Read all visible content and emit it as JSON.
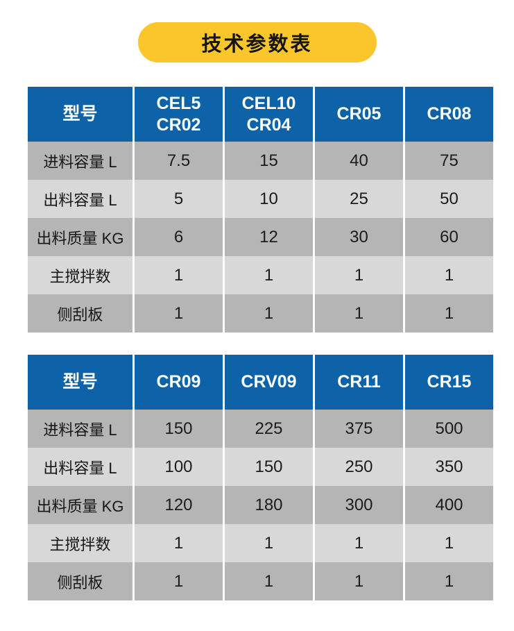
{
  "title": {
    "text": "技术参数表"
  },
  "colors": {
    "page_bg": "#ffffff",
    "title_pill": "#fbc62b",
    "title_text": "#141414",
    "header_bg": "#0e62a7",
    "header_text": "#ffffff",
    "row_dark": "#b5b5b5",
    "row_light": "#d8d8d8",
    "separator": "#ffffff",
    "cell_text": "#1b1b1b"
  },
  "tables": [
    {
      "columns": [
        "型号",
        "CEL5\nCR02",
        "CEL10\nCR04",
        "CR05",
        "CR08"
      ],
      "rows": [
        {
          "label": "进料容量 L",
          "values": [
            "7.5",
            "15",
            "40",
            "75"
          ]
        },
        {
          "label": "出料容量 L",
          "values": [
            "5",
            "10",
            "25",
            "50"
          ]
        },
        {
          "label": "出料质量 KG",
          "values": [
            "6",
            "12",
            "30",
            "60"
          ]
        },
        {
          "label": "主搅拌数",
          "values": [
            "1",
            "1",
            "1",
            "1"
          ]
        },
        {
          "label": "侧刮板",
          "values": [
            "1",
            "1",
            "1",
            "1"
          ]
        }
      ]
    },
    {
      "columns": [
        "型号",
        "CR09",
        "CRV09",
        "CR11",
        "CR15"
      ],
      "rows": [
        {
          "label": "进料容量 L",
          "values": [
            "150",
            "225",
            "375",
            "500"
          ]
        },
        {
          "label": "出料容量 L",
          "values": [
            "100",
            "150",
            "250",
            "350"
          ]
        },
        {
          "label": "出料质量 KG",
          "values": [
            "120",
            "180",
            "300",
            "400"
          ]
        },
        {
          "label": "主搅拌数",
          "values": [
            "1",
            "1",
            "1",
            "1"
          ]
        },
        {
          "label": "侧刮板",
          "values": [
            "1",
            "1",
            "1",
            "1"
          ]
        }
      ]
    }
  ]
}
